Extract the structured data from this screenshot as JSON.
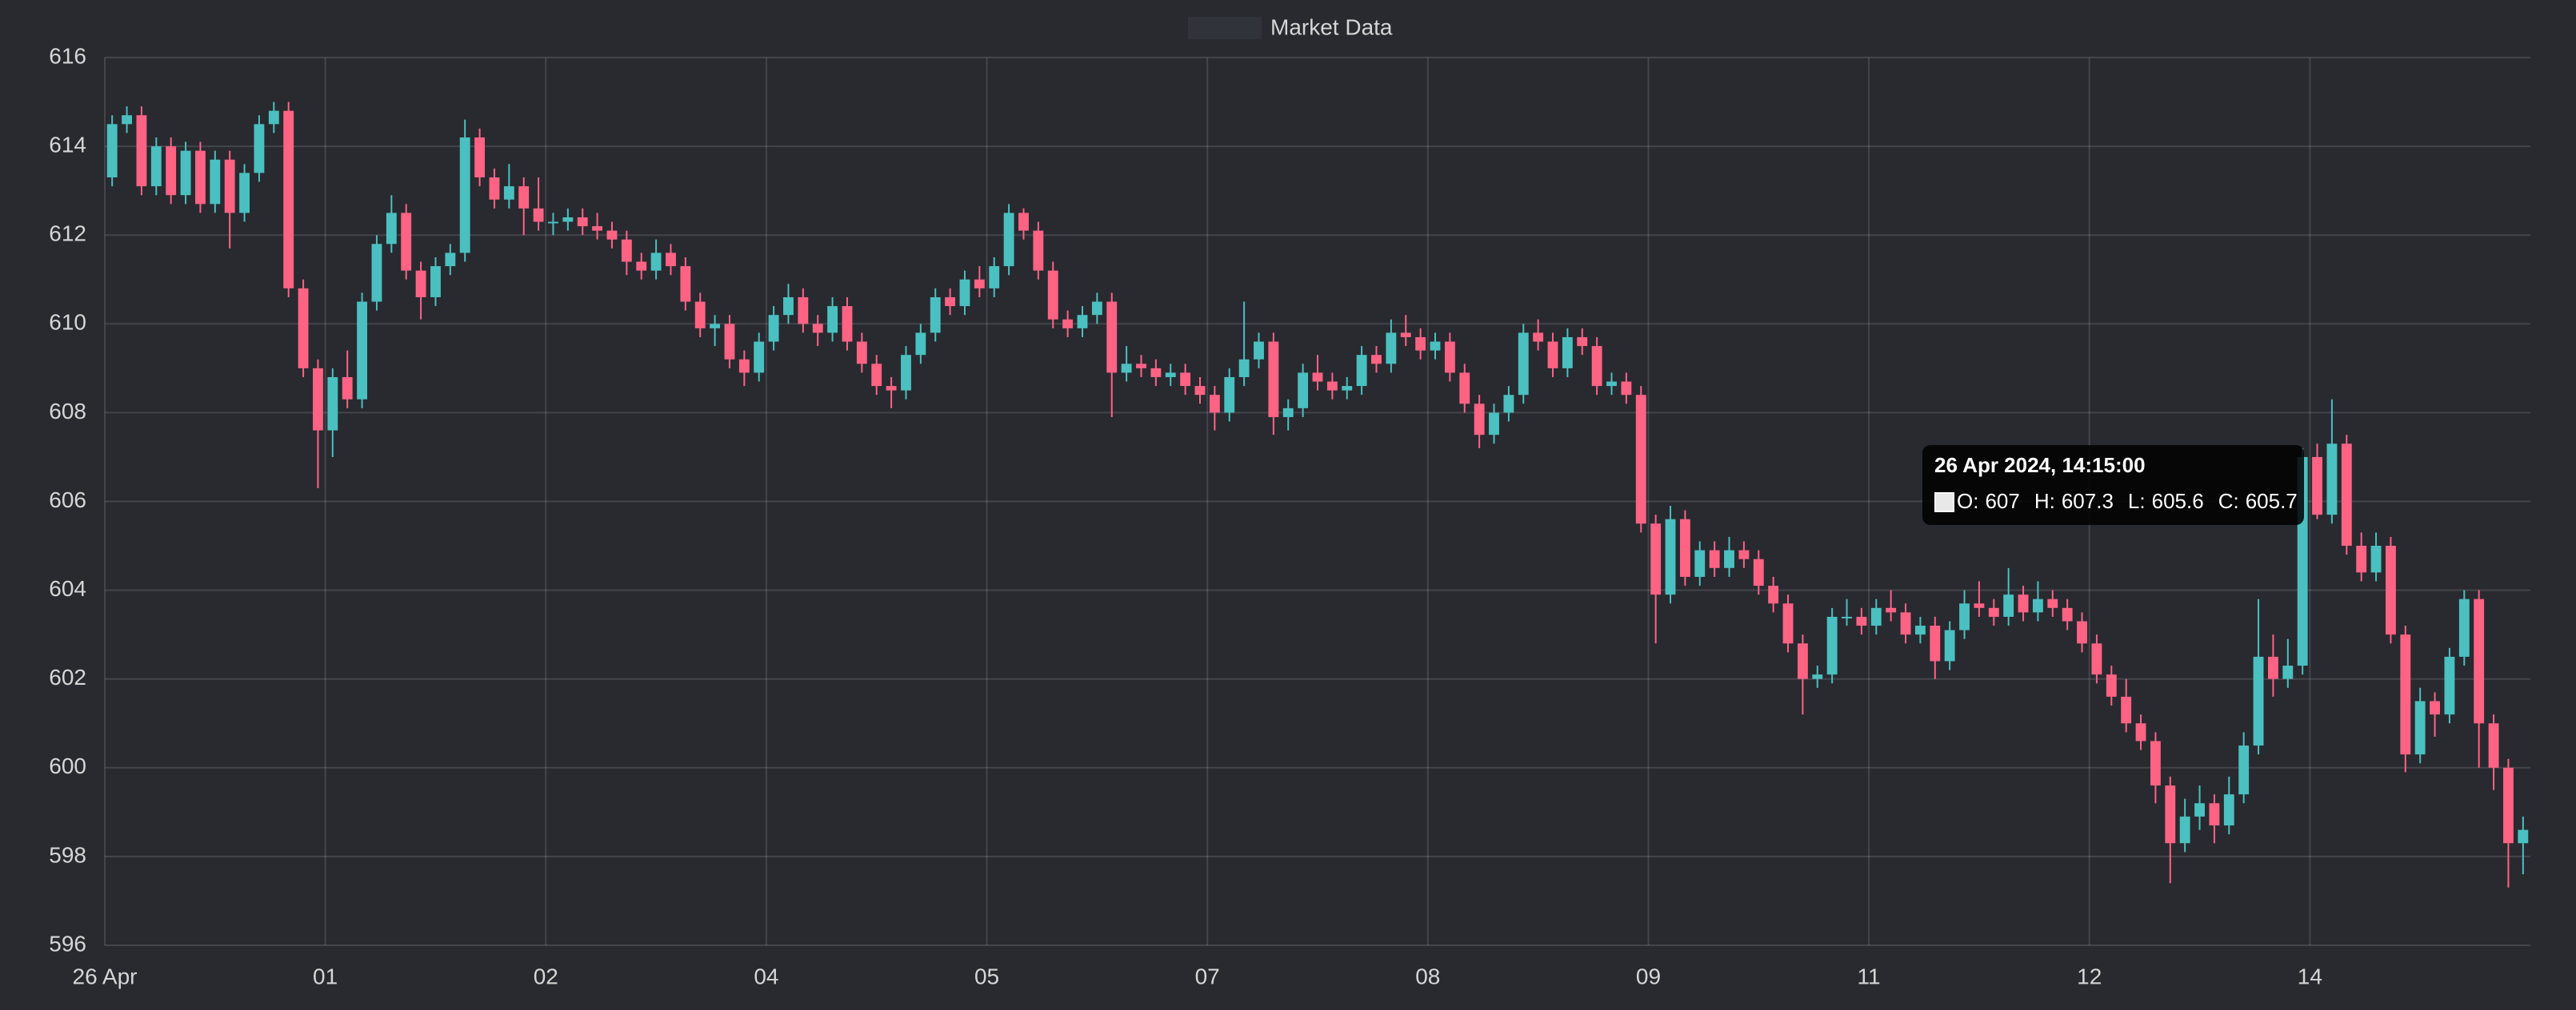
{
  "chart_data": {
    "type": "candlestick",
    "legend": true,
    "grid": true,
    "up_color": "#4bc0c0",
    "down_color": "#ff6384",
    "xlim": [
      0,
      165
    ],
    "xticks": [
      {
        "value": 0,
        "label": "26 Apr"
      },
      {
        "value": 15,
        "label": "01"
      },
      {
        "value": 30,
        "label": "02"
      },
      {
        "value": 45,
        "label": "04"
      },
      {
        "value": 60,
        "label": "05"
      },
      {
        "value": 75,
        "label": "07"
      },
      {
        "value": 90,
        "label": "08"
      },
      {
        "value": 105,
        "label": "09"
      },
      {
        "value": 120,
        "label": "11"
      },
      {
        "value": 135,
        "label": "12"
      },
      {
        "value": 150,
        "label": "14"
      }
    ],
    "ylim": [
      596,
      616
    ],
    "yticks": [
      596,
      598,
      600,
      602,
      604,
      606,
      608,
      610,
      612,
      614,
      616
    ],
    "series": [
      {
        "name": "Market Data",
        "color": "#30333a",
        "open": [
          613.3,
          614.5,
          614.7,
          613.1,
          614.0,
          612.9,
          613.9,
          612.7,
          613.7,
          612.5,
          613.4,
          614.5,
          614.8,
          610.8,
          609.0,
          607.6,
          608.8,
          608.3,
          610.5,
          611.8,
          612.5,
          611.2,
          610.6,
          611.3,
          611.6,
          614.2,
          613.3,
          612.8,
          613.1,
          612.6,
          612.3,
          612.3,
          612.4,
          612.2,
          612.1,
          611.9,
          611.4,
          611.2,
          611.6,
          611.3,
          610.5,
          609.9,
          610.0,
          609.2,
          608.9,
          609.6,
          610.2,
          610.6,
          610.0,
          609.8,
          610.4,
          609.6,
          609.1,
          608.6,
          608.5,
          609.3,
          609.8,
          610.6,
          610.4,
          611.0,
          610.8,
          611.3,
          612.5,
          612.1,
          611.2,
          610.1,
          609.9,
          610.2,
          610.5,
          608.9,
          609.1,
          609.0,
          608.8,
          608.9,
          608.6,
          608.4,
          608.0,
          608.8,
          609.2,
          609.6,
          607.9,
          608.1,
          608.9,
          608.7,
          608.5,
          608.6,
          609.3,
          609.1,
          609.8,
          609.7,
          609.4,
          609.6,
          608.9,
          608.2,
          607.5,
          608.0,
          608.4,
          609.8,
          609.6,
          609.0,
          609.7,
          609.5,
          608.6,
          608.7,
          608.4,
          605.5,
          603.9,
          605.6,
          604.3,
          604.9,
          604.5,
          604.9,
          604.7,
          604.1,
          603.7,
          602.8,
          602.0,
          602.1,
          603.4,
          603.4,
          603.2,
          603.6,
          603.5,
          603.0,
          603.2,
          602.4,
          603.1,
          603.7,
          603.6,
          603.4,
          603.9,
          603.5,
          603.8,
          603.6,
          603.3,
          602.8,
          602.1,
          601.6,
          601.0,
          600.6,
          599.6,
          598.3,
          598.9,
          599.2,
          598.7,
          599.4,
          600.5,
          602.5,
          602.0,
          602.3,
          607.0,
          605.7,
          607.3,
          605.0,
          604.4,
          605.0,
          603.0,
          600.3,
          601.5,
          601.2,
          602.5,
          603.8,
          601.0,
          600.0,
          598.3
        ],
        "high": [
          614.7,
          614.9,
          614.9,
          614.2,
          614.2,
          614.1,
          614.1,
          613.9,
          613.9,
          613.6,
          614.7,
          615.0,
          615.0,
          611.0,
          609.2,
          609.0,
          609.4,
          610.7,
          612.0,
          612.9,
          612.7,
          611.4,
          611.5,
          611.8,
          614.6,
          614.4,
          613.5,
          613.6,
          613.3,
          613.3,
          612.5,
          612.6,
          612.6,
          612.5,
          612.3,
          612.1,
          611.6,
          611.9,
          611.8,
          611.5,
          610.7,
          610.2,
          610.2,
          609.4,
          609.8,
          610.4,
          610.9,
          610.8,
          610.2,
          610.6,
          610.6,
          609.8,
          609.3,
          608.8,
          609.5,
          610.0,
          610.8,
          610.8,
          611.2,
          611.3,
          611.5,
          612.7,
          612.6,
          612.3,
          611.4,
          610.3,
          610.4,
          610.7,
          610.7,
          609.5,
          609.3,
          609.2,
          609.1,
          609.1,
          608.8,
          608.6,
          609.0,
          610.5,
          609.8,
          609.8,
          608.3,
          609.1,
          609.3,
          608.9,
          608.8,
          609.5,
          609.5,
          610.1,
          610.2,
          609.9,
          609.8,
          609.8,
          609.1,
          608.4,
          608.2,
          608.6,
          610.0,
          610.1,
          609.8,
          609.9,
          609.9,
          609.7,
          608.9,
          608.9,
          608.6,
          605.7,
          605.9,
          605.8,
          605.1,
          605.1,
          605.2,
          605.1,
          604.9,
          604.3,
          603.9,
          603.0,
          602.3,
          603.6,
          603.8,
          603.6,
          603.8,
          604.0,
          603.7,
          603.4,
          603.4,
          603.3,
          604.0,
          604.2,
          603.8,
          604.5,
          604.1,
          604.2,
          604.0,
          603.8,
          603.5,
          603.0,
          602.3,
          602.0,
          601.2,
          600.8,
          599.8,
          599.3,
          599.6,
          599.4,
          599.8,
          600.8,
          603.8,
          603.0,
          602.9,
          607.2,
          607.3,
          608.3,
          607.5,
          605.3,
          605.3,
          605.2,
          603.2,
          601.8,
          601.7,
          602.7,
          604.0,
          604.0,
          601.2,
          600.2,
          598.9
        ],
        "low": [
          613.1,
          614.3,
          612.9,
          612.9,
          612.7,
          612.7,
          612.5,
          612.5,
          611.7,
          612.3,
          613.2,
          614.3,
          610.6,
          608.8,
          606.3,
          607.0,
          608.1,
          608.1,
          610.3,
          611.6,
          611.0,
          610.1,
          610.4,
          611.1,
          611.4,
          613.1,
          612.6,
          612.6,
          612.0,
          612.1,
          612.0,
          612.1,
          612.0,
          611.9,
          611.7,
          611.1,
          611.0,
          611.0,
          611.1,
          610.3,
          609.7,
          609.5,
          609.0,
          608.6,
          608.7,
          609.4,
          610.0,
          609.8,
          609.5,
          609.6,
          609.4,
          608.9,
          608.4,
          608.1,
          608.3,
          609.1,
          609.6,
          610.2,
          610.2,
          610.6,
          610.6,
          611.1,
          611.9,
          611.0,
          609.9,
          609.7,
          609.7,
          610.0,
          607.9,
          608.7,
          608.8,
          608.6,
          608.6,
          608.4,
          608.2,
          607.6,
          607.8,
          608.6,
          609.0,
          607.5,
          607.6,
          607.9,
          608.5,
          608.3,
          608.3,
          608.4,
          608.9,
          608.9,
          609.5,
          609.2,
          609.2,
          608.7,
          608.0,
          607.2,
          607.3,
          607.8,
          608.2,
          609.4,
          608.8,
          608.8,
          609.3,
          608.4,
          608.4,
          608.2,
          605.3,
          602.8,
          603.7,
          604.1,
          604.1,
          604.3,
          604.3,
          604.5,
          603.9,
          603.5,
          602.6,
          601.2,
          601.8,
          601.9,
          603.2,
          603.0,
          603.0,
          603.3,
          602.8,
          602.8,
          602.0,
          602.2,
          602.9,
          603.4,
          603.2,
          603.2,
          603.3,
          603.3,
          603.4,
          603.1,
          602.6,
          601.9,
          601.4,
          600.8,
          600.4,
          599.2,
          597.4,
          598.1,
          598.6,
          598.3,
          598.5,
          599.2,
          600.3,
          601.6,
          601.8,
          602.1,
          605.6,
          605.5,
          604.8,
          604.2,
          604.2,
          602.8,
          599.9,
          600.1,
          600.7,
          601.0,
          602.3,
          600.0,
          599.5,
          597.3,
          597.6
        ],
        "close": [
          614.5,
          614.7,
          613.1,
          614.0,
          612.9,
          613.9,
          612.7,
          613.7,
          612.5,
          613.4,
          614.5,
          614.8,
          610.8,
          609.0,
          607.6,
          608.8,
          608.3,
          610.5,
          611.8,
          612.5,
          611.2,
          610.6,
          611.3,
          611.6,
          614.2,
          613.3,
          612.8,
          613.1,
          612.6,
          612.3,
          612.3,
          612.4,
          612.2,
          612.1,
          611.9,
          611.4,
          611.2,
          611.6,
          611.3,
          610.5,
          609.9,
          610.0,
          609.2,
          608.9,
          609.6,
          610.2,
          610.6,
          610.0,
          609.8,
          610.4,
          609.6,
          609.1,
          608.6,
          608.5,
          609.3,
          609.8,
          610.6,
          610.4,
          611.0,
          610.8,
          611.3,
          612.5,
          612.1,
          611.2,
          610.1,
          609.9,
          610.2,
          610.5,
          608.9,
          609.1,
          609.0,
          608.8,
          608.9,
          608.6,
          608.4,
          608.0,
          608.8,
          609.2,
          609.6,
          607.9,
          608.1,
          608.9,
          608.7,
          608.5,
          608.6,
          609.3,
          609.1,
          609.8,
          609.7,
          609.4,
          609.6,
          608.9,
          608.2,
          607.5,
          608.0,
          608.4,
          609.8,
          609.6,
          609.0,
          609.7,
          609.5,
          608.6,
          608.7,
          608.4,
          605.5,
          603.9,
          605.6,
          604.3,
          604.9,
          604.5,
          604.9,
          604.7,
          604.1,
          603.7,
          602.8,
          602.0,
          602.1,
          603.4,
          603.4,
          603.2,
          603.6,
          603.5,
          603.0,
          603.2,
          602.4,
          603.1,
          603.7,
          603.6,
          603.4,
          603.9,
          603.5,
          603.8,
          603.6,
          603.3,
          602.8,
          602.1,
          601.6,
          601.0,
          600.6,
          599.6,
          598.3,
          598.9,
          599.2,
          598.7,
          599.4,
          600.5,
          602.5,
          602.0,
          602.3,
          607.0,
          605.7,
          607.3,
          605.0,
          604.4,
          605.0,
          603.0,
          600.3,
          601.5,
          601.2,
          602.5,
          603.8,
          601.0,
          600.0,
          598.3,
          598.6
        ]
      }
    ],
    "tooltip": {
      "title": "26 Apr 2024, 14:15:00",
      "items": [
        {
          "label": "O:",
          "value": 607
        },
        {
          "label": "H:",
          "value": 607.3
        },
        {
          "label": "L:",
          "value": 605.6
        },
        {
          "label": "C:",
          "value": 605.7
        }
      ]
    }
  }
}
